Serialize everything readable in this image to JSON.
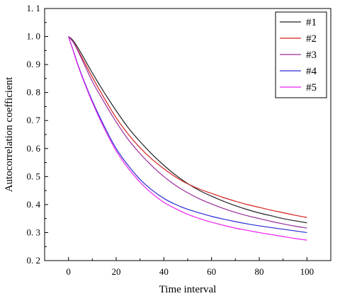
{
  "chart_data": {
    "type": "line",
    "xlabel": "Time interval",
    "ylabel": "Autocorrelation coefficient",
    "xlim": [
      -10,
      110
    ],
    "ylim": [
      0.2,
      1.1
    ],
    "x_ticks": [
      "0",
      "20",
      "40",
      "60",
      "80",
      "100"
    ],
    "y_ticks": [
      "0. 2",
      "0. 3",
      "0. 4",
      "0. 5",
      "0. 6",
      "0. 7",
      "0. 8",
      "0. 9",
      "1. 0",
      "1. 1"
    ],
    "grid": false,
    "legend_position": "top-right",
    "x": [
      0,
      2,
      5,
      10,
      15,
      20,
      25,
      30,
      35,
      40,
      45,
      50,
      55,
      60,
      65,
      70,
      75,
      80,
      85,
      90,
      95,
      100
    ],
    "series": [
      {
        "name": "#1",
        "color": "#222222",
        "values": [
          1.0,
          0.985,
          0.945,
          0.87,
          0.8,
          0.735,
          0.675,
          0.625,
          0.58,
          0.54,
          0.505,
          0.475,
          0.45,
          0.43,
          0.412,
          0.396,
          0.382,
          0.37,
          0.36,
          0.35,
          0.342,
          0.335
        ]
      },
      {
        "name": "#2",
        "color": "#d62020",
        "values": [
          1.0,
          0.98,
          0.935,
          0.855,
          0.78,
          0.71,
          0.652,
          0.603,
          0.562,
          0.528,
          0.498,
          0.474,
          0.455,
          0.44,
          0.425,
          0.412,
          0.4,
          0.39,
          0.38,
          0.371,
          0.362,
          0.354
        ]
      },
      {
        "name": "#3",
        "color": "#9a2a9a",
        "values": [
          1.0,
          0.98,
          0.93,
          0.84,
          0.765,
          0.695,
          0.633,
          0.582,
          0.538,
          0.5,
          0.468,
          0.442,
          0.42,
          0.402,
          0.386,
          0.372,
          0.36,
          0.35,
          0.34,
          0.331,
          0.323,
          0.316
        ]
      },
      {
        "name": "#4",
        "color": "#2a2ad4",
        "values": [
          1.0,
          0.95,
          0.875,
          0.77,
          0.68,
          0.6,
          0.54,
          0.49,
          0.452,
          0.422,
          0.4,
          0.383,
          0.37,
          0.358,
          0.348,
          0.339,
          0.331,
          0.324,
          0.318,
          0.312,
          0.306,
          0.3
        ]
      },
      {
        "name": "#5",
        "color": "#ee22ee",
        "values": [
          1.0,
          0.948,
          0.872,
          0.765,
          0.672,
          0.592,
          0.53,
          0.48,
          0.44,
          0.408,
          0.385,
          0.365,
          0.35,
          0.337,
          0.326,
          0.316,
          0.308,
          0.3,
          0.293,
          0.286,
          0.279,
          0.273
        ]
      }
    ]
  }
}
